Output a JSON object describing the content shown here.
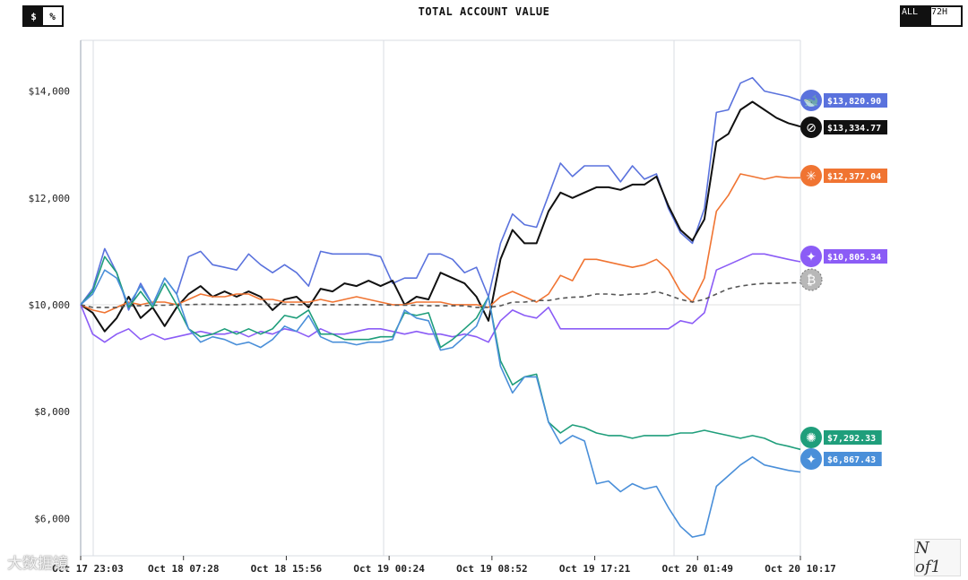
{
  "header": {
    "unit_dollar": "$",
    "unit_percent": "%",
    "title": "TOTAL ACCOUNT VALUE",
    "range_all": "ALL",
    "range_72h": "72H"
  },
  "watermark": "大数据镜",
  "logo": "N of1",
  "chart_data": {
    "type": "line",
    "title": "TOTAL ACCOUNT VALUE",
    "xlabel": "",
    "ylabel": "",
    "ylim": [
      5300,
      14950
    ],
    "x_tick_labels": [
      "Oct 17 23:03",
      "Oct 18 07:28",
      "Oct 18 15:56",
      "Oct 19 00:24",
      "Oct 19 08:52",
      "Oct 19 17:21",
      "Oct 20 01:49",
      "Oct 20 10:17"
    ],
    "y_ticks": [
      6000,
      8000,
      10000,
      12000,
      14000
    ],
    "y_tick_labels": [
      "$6,000",
      "$8,000",
      "$10,000",
      "$12,000",
      "$14,000"
    ],
    "grid": true,
    "points": 61,
    "series": [
      {
        "key": "blue_top",
        "color": "#5a72dd",
        "end_label": "$13,820.90",
        "values": [
          10000,
          10300,
          11050,
          10600,
          9900,
          10400,
          10000,
          10500,
          10200,
          10900,
          11000,
          10750,
          10700,
          10650,
          10950,
          10750,
          10600,
          10750,
          10600,
          10350,
          11000,
          10950,
          10950,
          10950,
          10950,
          10900,
          10400,
          10500,
          10500,
          10950,
          10950,
          10850,
          10600,
          10700,
          10150,
          11150,
          11700,
          11500,
          11450,
          12050,
          12650,
          12400,
          12600,
          12600,
          12600,
          12300,
          12600,
          12350,
          12450,
          11800,
          11350,
          11150,
          11800,
          13600,
          13650,
          14150,
          14250,
          14000,
          13950,
          13900,
          13820.9
        ]
      },
      {
        "key": "black",
        "color": "#111111",
        "end_label": "$13,334.77",
        "values": [
          10000,
          9850,
          9500,
          9750,
          10150,
          9750,
          9950,
          9600,
          9950,
          10200,
          10350,
          10150,
          10250,
          10150,
          10250,
          10150,
          9900,
          10100,
          10150,
          9950,
          10300,
          10250,
          10400,
          10350,
          10450,
          10350,
          10450,
          10000,
          10150,
          10100,
          10600,
          10500,
          10400,
          10150,
          9700,
          10850,
          11400,
          11150,
          11150,
          11750,
          12100,
          12000,
          12100,
          12200,
          12200,
          12150,
          12250,
          12250,
          12400,
          11850,
          11400,
          11200,
          11600,
          13050,
          13200,
          13650,
          13800,
          13650,
          13500,
          13400,
          13334.77
        ]
      },
      {
        "key": "orange",
        "color": "#f07432",
        "end_label": "$12,377.04",
        "values": [
          10000,
          9900,
          9850,
          9950,
          10050,
          10000,
          10050,
          10050,
          10000,
          10100,
          10200,
          10150,
          10150,
          10200,
          10200,
          10100,
          10100,
          10050,
          10050,
          10050,
          10100,
          10050,
          10100,
          10150,
          10100,
          10050,
          10000,
          10000,
          10050,
          10050,
          10050,
          10000,
          10000,
          10000,
          9950,
          10150,
          10250,
          10150,
          10050,
          10200,
          10550,
          10450,
          10850,
          10850,
          10800,
          10750,
          10700,
          10750,
          10850,
          10650,
          10250,
          10050,
          10500,
          11750,
          12050,
          12450,
          12400,
          12350,
          12400,
          12377.04,
          12377.04
        ]
      },
      {
        "key": "purple",
        "color": "#8b5cf6",
        "end_label": "$10,805.34",
        "values": [
          10000,
          9450,
          9300,
          9450,
          9550,
          9350,
          9450,
          9350,
          9400,
          9450,
          9500,
          9450,
          9450,
          9500,
          9400,
          9500,
          9450,
          9550,
          9500,
          9400,
          9550,
          9450,
          9450,
          9500,
          9550,
          9550,
          9500,
          9450,
          9500,
          9450,
          9450,
          9400,
          9450,
          9400,
          9300,
          9700,
          9900,
          9800,
          9750,
          9950,
          9550,
          9550,
          9550,
          9550,
          9550,
          9550,
          9550,
          9550,
          9550,
          9550,
          9700,
          9650,
          9850,
          10650,
          10750,
          10850,
          10950,
          10950,
          10900,
          10850,
          10805.34
        ]
      },
      {
        "key": "gray_dashed",
        "color": "#555555",
        "dashed": true,
        "end_label": "",
        "values": [
          10000,
          9950,
          9950,
          9950,
          9980,
          9980,
          9990,
          9990,
          10000,
          10000,
          10010,
          10010,
          10000,
          10000,
          10010,
          10010,
          10010,
          10010,
          10000,
          10000,
          10000,
          10000,
          10000,
          10000,
          10000,
          10000,
          9990,
          9990,
          9990,
          9980,
          9980,
          9980,
          9980,
          9950,
          9950,
          9980,
          10050,
          10050,
          10080,
          10080,
          10120,
          10140,
          10150,
          10200,
          10200,
          10180,
          10200,
          10200,
          10250,
          10180,
          10100,
          10050,
          10100,
          10200,
          10300,
          10350,
          10380,
          10400,
          10400,
          10410,
          10410
        ]
      },
      {
        "key": "green",
        "color": "#1f9e7b",
        "end_label": "$7,292.33",
        "values": [
          10000,
          10250,
          10900,
          10600,
          9950,
          10250,
          9950,
          10400,
          10000,
          9550,
          9400,
          9450,
          9550,
          9450,
          9550,
          9450,
          9550,
          9800,
          9750,
          9900,
          9450,
          9450,
          9350,
          9350,
          9350,
          9400,
          9400,
          9850,
          9800,
          9850,
          9200,
          9350,
          9550,
          9750,
          10150,
          8950,
          8500,
          8650,
          8700,
          7800,
          7600,
          7750,
          7700,
          7600,
          7550,
          7550,
          7500,
          7550,
          7550,
          7550,
          7600,
          7600,
          7650,
          7600,
          7550,
          7500,
          7550,
          7500,
          7400,
          7350,
          7292.33
        ]
      },
      {
        "key": "blue_light",
        "color": "#4a8fd9",
        "end_label": "$6,867.43",
        "values": [
          10000,
          10200,
          10650,
          10500,
          10000,
          10350,
          10000,
          10500,
          10200,
          9550,
          9300,
          9400,
          9350,
          9250,
          9300,
          9200,
          9350,
          9600,
          9500,
          9800,
          9400,
          9300,
          9300,
          9250,
          9300,
          9300,
          9350,
          9900,
          9750,
          9700,
          9150,
          9200,
          9400,
          9600,
          10150,
          8850,
          8350,
          8650,
          8650,
          7800,
          7400,
          7550,
          7450,
          6650,
          6700,
          6500,
          6650,
          6550,
          6600,
          6200,
          5850,
          5650,
          5700,
          6600,
          6800,
          7000,
          7150,
          7000,
          6950,
          6900,
          6867.43
        ]
      }
    ]
  },
  "colors": {
    "grid": "#d8dce3",
    "zero_line": "#e2e2e2",
    "axis": "#333333"
  },
  "icons": [
    "deepseek-whale-icon",
    "grok-icon",
    "claude-icon",
    "qwen-icon",
    "bitcoin-icon",
    "chatgpt-icon",
    "gemini-icon"
  ]
}
